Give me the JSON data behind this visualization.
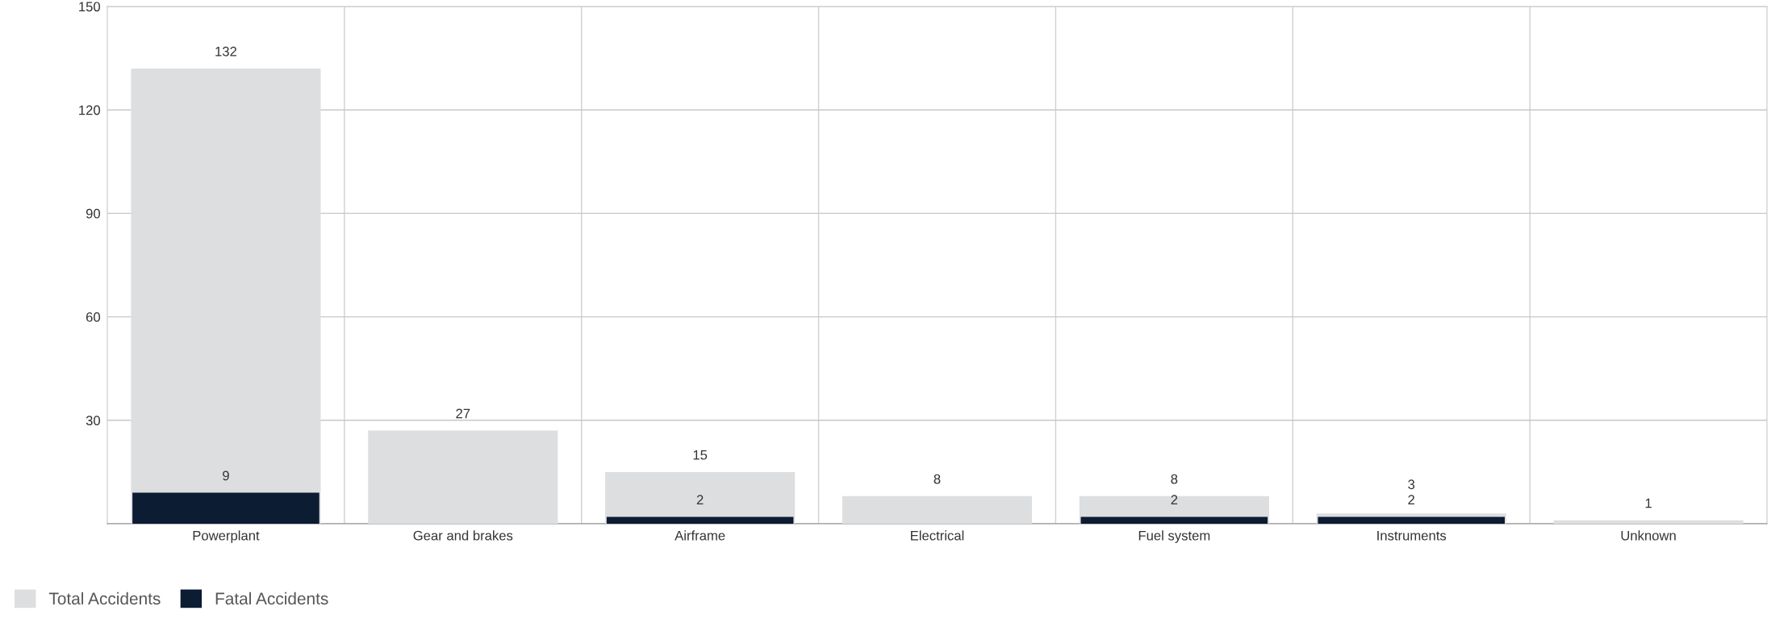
{
  "chart_data": {
    "type": "bar",
    "categories": [
      "Powerplant",
      "Gear and brakes",
      "Airframe",
      "Electrical",
      "Fuel system",
      "Instruments",
      "Unknown"
    ],
    "series": [
      {
        "name": "Total Accidents",
        "color": "#dddee0",
        "values": [
          132,
          27,
          15,
          8,
          8,
          3,
          1
        ]
      },
      {
        "name": "Fatal Accidents",
        "color": "#0c1c33",
        "values": [
          9,
          null,
          2,
          null,
          2,
          2,
          null
        ]
      }
    ],
    "ylim": [
      0,
      150
    ],
    "yticks": [
      {
        "value": 0,
        "label": null
      },
      30,
      60,
      90,
      120,
      150
    ],
    "grid": true,
    "legend": "bottom left",
    "data_labels": true
  }
}
